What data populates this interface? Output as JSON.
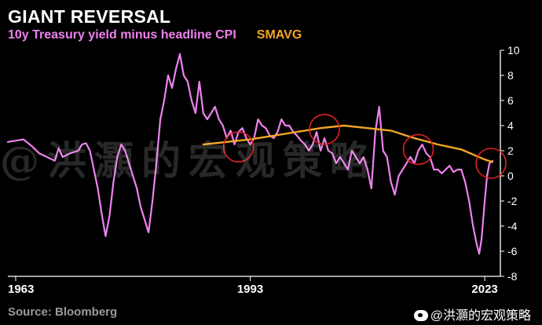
{
  "header": {
    "title": "GIANT REVERSAL",
    "subtitle": "10y Treasury yield minus headline CPI",
    "subtitle_series2": "SMAVG"
  },
  "footer": {
    "source": "Source: Bloomberg",
    "weibo_handle": "@洪灝的宏观策略"
  },
  "watermark": "@洪灝的宏观策略",
  "colors": {
    "background": "#000000",
    "real_yield": "#ee82ee",
    "smavg": "#f5a623",
    "circle": "#e02020",
    "axis": "#ffffff"
  },
  "chart_data": {
    "type": "line",
    "title": "GIANT REVERSAL",
    "subtitle": "10y Treasury yield minus headline CPI",
    "x_ticks": [
      "1963",
      "1993",
      "2023"
    ],
    "xlim": [
      1962,
      2025
    ],
    "ylim": [
      -8,
      10
    ],
    "y_ticks": [
      10,
      8,
      6,
      4,
      2,
      0,
      -2,
      -4,
      -6,
      -8
    ],
    "y_axis_side": "right",
    "grid": false,
    "legend": "subtitle",
    "series": [
      {
        "name": "10y Treasury yield minus headline CPI",
        "color": "#ee82ee",
        "points": [
          [
            1962,
            2.7
          ],
          [
            1963,
            2.8
          ],
          [
            1964,
            2.9
          ],
          [
            1965,
            2.4
          ],
          [
            1966,
            1.8
          ],
          [
            1967,
            1.5
          ],
          [
            1968,
            1.2
          ],
          [
            1968.5,
            2.2
          ],
          [
            1969,
            1.5
          ],
          [
            1970,
            1.8
          ],
          [
            1971,
            2.0
          ],
          [
            1971.5,
            2.5
          ],
          [
            1972,
            2.6
          ],
          [
            1972.5,
            2.0
          ],
          [
            1973,
            0.5
          ],
          [
            1973.5,
            -1.0
          ],
          [
            1974,
            -3.0
          ],
          [
            1974.5,
            -4.8
          ],
          [
            1975,
            -3.2
          ],
          [
            1975.5,
            -0.5
          ],
          [
            1976,
            1.5
          ],
          [
            1976.5,
            2.5
          ],
          [
            1977,
            2.0
          ],
          [
            1977.5,
            1.0
          ],
          [
            1978,
            0.0
          ],
          [
            1978.5,
            -1.0
          ],
          [
            1979,
            -2.5
          ],
          [
            1979.5,
            -3.5
          ],
          [
            1980,
            -4.5
          ],
          [
            1980.5,
            -2.0
          ],
          [
            1981,
            1.0
          ],
          [
            1981.5,
            4.5
          ],
          [
            1982,
            6.0
          ],
          [
            1982.5,
            8.0
          ],
          [
            1983,
            7.0
          ],
          [
            1983.5,
            8.5
          ],
          [
            1984,
            9.7
          ],
          [
            1984.5,
            8.0
          ],
          [
            1985,
            7.5
          ],
          [
            1985.5,
            6.0
          ],
          [
            1986,
            5.0
          ],
          [
            1986.5,
            7.5
          ],
          [
            1987,
            5.0
          ],
          [
            1987.5,
            4.5
          ],
          [
            1988,
            5.0
          ],
          [
            1988.5,
            5.5
          ],
          [
            1989,
            4.5
          ],
          [
            1989.5,
            4.0
          ],
          [
            1990,
            3.0
          ],
          [
            1990.5,
            3.6
          ],
          [
            1991,
            2.5
          ],
          [
            1991.5,
            3.5
          ],
          [
            1992,
            3.8
          ],
          [
            1992.5,
            3.0
          ],
          [
            1993,
            2.5
          ],
          [
            1993.5,
            3.0
          ],
          [
            1994,
            4.5
          ],
          [
            1994.5,
            4.0
          ],
          [
            1995,
            3.8
          ],
          [
            1995.5,
            3.2
          ],
          [
            1996,
            3.0
          ],
          [
            1996.5,
            3.5
          ],
          [
            1997,
            4.5
          ],
          [
            1997.5,
            4.0
          ],
          [
            1998,
            4.0
          ],
          [
            1998.5,
            3.5
          ],
          [
            1999,
            3.2
          ],
          [
            1999.5,
            2.8
          ],
          [
            2000,
            2.5
          ],
          [
            2000.5,
            2.0
          ],
          [
            2001,
            2.5
          ],
          [
            2001.5,
            3.5
          ],
          [
            2002,
            2.0
          ],
          [
            2002.5,
            3.0
          ],
          [
            2003,
            2.0
          ],
          [
            2003.5,
            1.8
          ],
          [
            2004,
            1.0
          ],
          [
            2004.5,
            1.5
          ],
          [
            2005,
            1.0
          ],
          [
            2005.5,
            0.5
          ],
          [
            2006,
            2.0
          ],
          [
            2006.5,
            1.5
          ],
          [
            2007,
            1.0
          ],
          [
            2007.5,
            1.5
          ],
          [
            2008,
            0.5
          ],
          [
            2008.5,
            -1.0
          ],
          [
            2009,
            3.5
          ],
          [
            2009.5,
            5.5
          ],
          [
            2010,
            2.0
          ],
          [
            2010.5,
            1.5
          ],
          [
            2011,
            -0.5
          ],
          [
            2011.5,
            -1.5
          ],
          [
            2012,
            0.0
          ],
          [
            2012.5,
            0.5
          ],
          [
            2013,
            1.0
          ],
          [
            2013.5,
            1.5
          ],
          [
            2014,
            1.0
          ],
          [
            2014.5,
            2.0
          ],
          [
            2015,
            2.5
          ],
          [
            2015.5,
            1.8
          ],
          [
            2016,
            1.5
          ],
          [
            2016.5,
            0.5
          ],
          [
            2017,
            0.5
          ],
          [
            2017.5,
            0.2
          ],
          [
            2018,
            0.5
          ],
          [
            2018.5,
            0.8
          ],
          [
            2019,
            0.3
          ],
          [
            2019.5,
            0.5
          ],
          [
            2020,
            0.5
          ],
          [
            2020.5,
            -0.5
          ],
          [
            2021,
            -2.0
          ],
          [
            2021.5,
            -4.0
          ],
          [
            2022,
            -5.5
          ],
          [
            2022.3,
            -6.2
          ],
          [
            2022.6,
            -5.0
          ],
          [
            2023,
            -2.0
          ],
          [
            2023.3,
            0.0
          ],
          [
            2023.6,
            1.0
          ],
          [
            2024,
            1.2
          ]
        ]
      },
      {
        "name": "SMAVG",
        "color": "#f5a623",
        "points": [
          [
            1987,
            2.5
          ],
          [
            1990,
            2.7
          ],
          [
            1993,
            2.9
          ],
          [
            1996,
            3.2
          ],
          [
            1999,
            3.5
          ],
          [
            2002,
            3.8
          ],
          [
            2005,
            4.0
          ],
          [
            2008,
            3.8
          ],
          [
            2011,
            3.6
          ],
          [
            2014,
            3.0
          ],
          [
            2017,
            2.5
          ],
          [
            2020,
            2.1
          ],
          [
            2023,
            1.3
          ],
          [
            2024,
            1.1
          ]
        ]
      }
    ],
    "annotations": [
      {
        "type": "circle",
        "x": 1991.5,
        "y": 2.3
      },
      {
        "type": "circle",
        "x": 2002.5,
        "y": 3.7
      },
      {
        "type": "circle",
        "x": 2014.5,
        "y": 2.1
      },
      {
        "type": "circle",
        "x": 2023.8,
        "y": 1.0
      }
    ]
  }
}
